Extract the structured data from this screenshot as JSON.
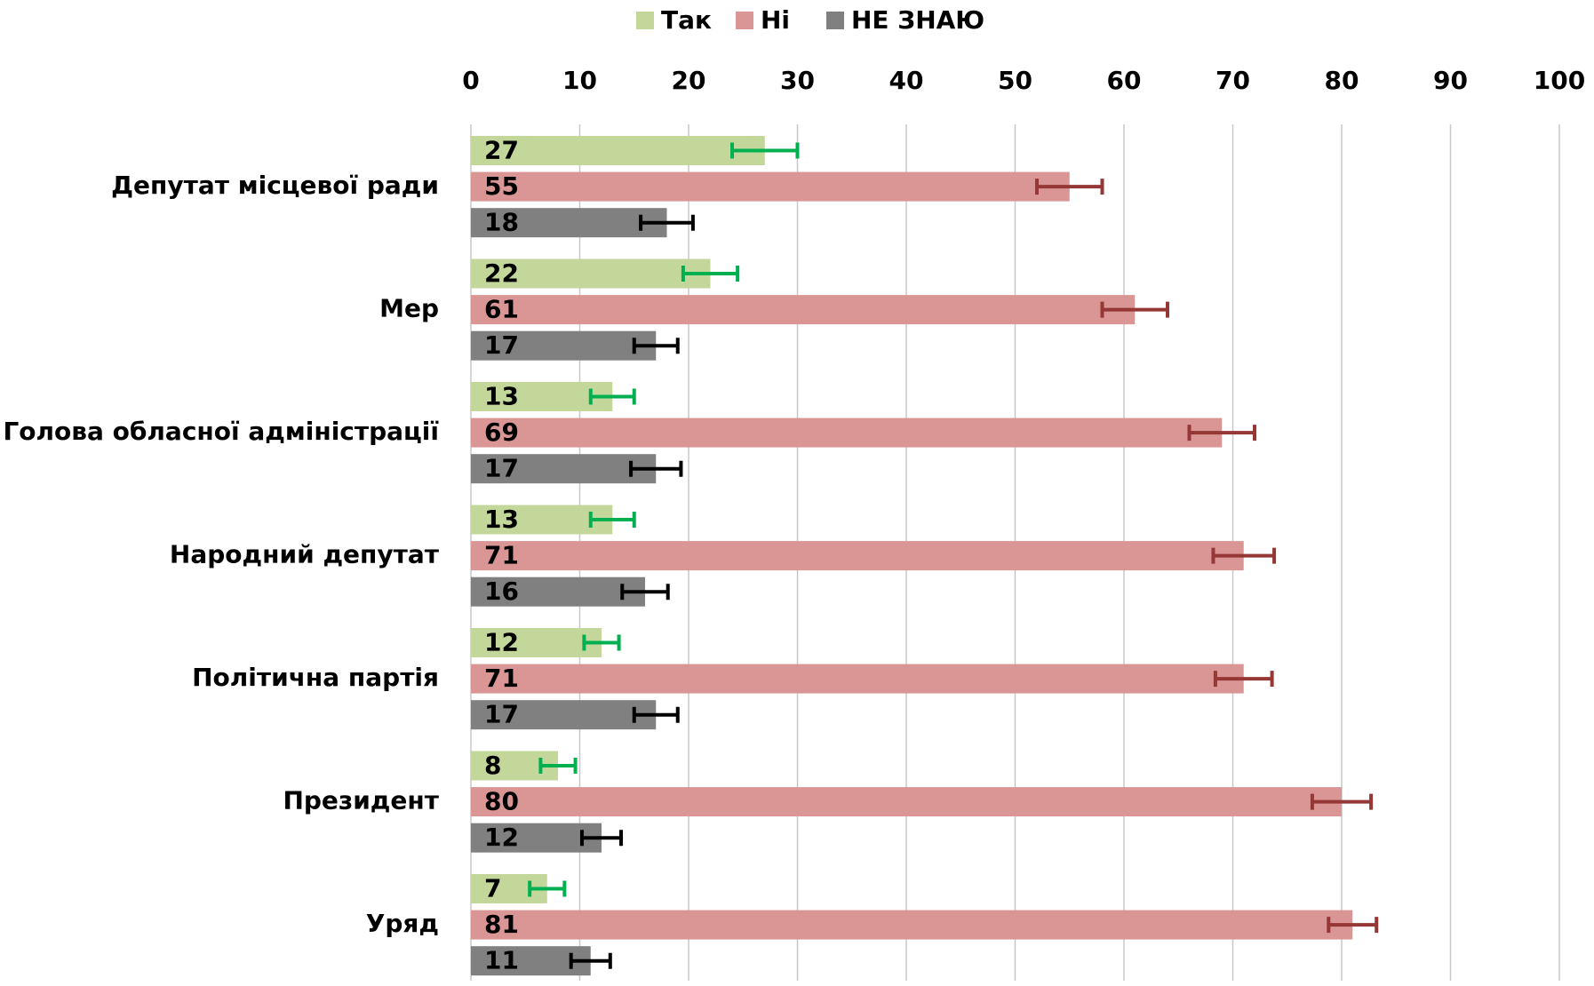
{
  "chart_data": {
    "type": "bar",
    "orientation": "horizontal",
    "categories": [
      "Депутат місцевої ради",
      "Мер",
      "Голова обласної адміністрації",
      "Народний депутат",
      "Політична партія",
      "Президент",
      "Уряд"
    ],
    "series": [
      {
        "name": "Так",
        "color": "#c4d79b",
        "error_color": "#00b050",
        "label_color": "#404040",
        "values": [
          27,
          22,
          13,
          13,
          12,
          8,
          7
        ],
        "errors": [
          3,
          2.5,
          2,
          2,
          1.6,
          1.6,
          1.6
        ]
      },
      {
        "name": "Ні",
        "color": "#d99694",
        "error_color": "#953735",
        "label_color": "#404040",
        "values": [
          55,
          61,
          69,
          71,
          71,
          80,
          81
        ],
        "errors": [
          3,
          3,
          3,
          2.8,
          2.6,
          2.7,
          2.2
        ]
      },
      {
        "name": "НЕ ЗНАЮ",
        "color": "#808080",
        "error_color": "#000000",
        "label_color": "#ffffff",
        "values": [
          18,
          17,
          17,
          16,
          17,
          12,
          11
        ],
        "errors": [
          2.4,
          2,
          2.3,
          2.1,
          2,
          1.8,
          1.8
        ]
      }
    ],
    "xlim": [
      0,
      100
    ],
    "xticks": [
      0,
      10,
      20,
      30,
      40,
      50,
      60,
      70,
      80,
      90,
      100
    ],
    "grid": true,
    "legend": "top"
  }
}
